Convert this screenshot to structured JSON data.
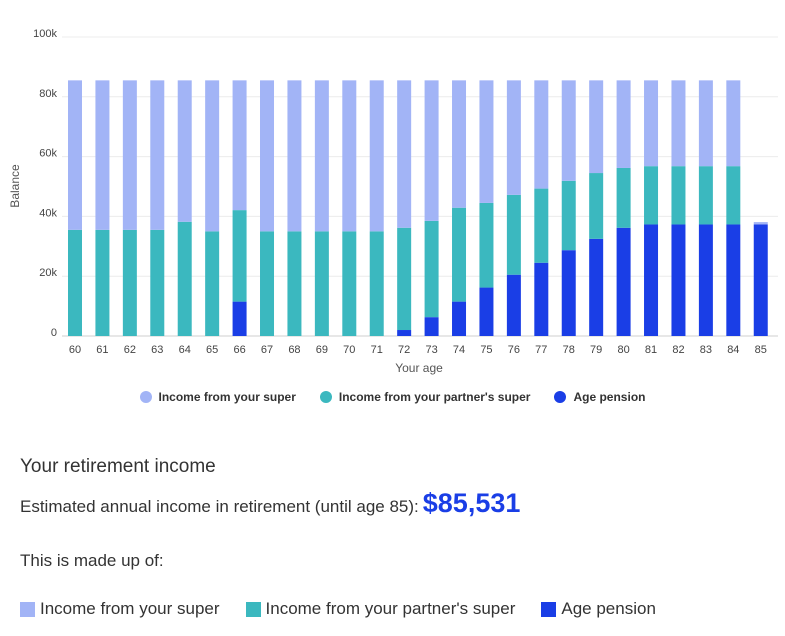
{
  "chart_data": {
    "type": "bar",
    "stacked": true,
    "xlabel": "Your age",
    "ylabel": "Balance",
    "ylim": [
      0,
      100000
    ],
    "y_ticks": [
      "0",
      "20k",
      "40k",
      "60k",
      "80k",
      "100k"
    ],
    "y_tick_values": [
      0,
      20000,
      40000,
      60000,
      80000,
      100000
    ],
    "grid": true,
    "legend_position": "bottom",
    "categories": [
      "60",
      "61",
      "62",
      "63",
      "64",
      "65",
      "66",
      "67",
      "68",
      "69",
      "70",
      "71",
      "72",
      "73",
      "74",
      "75",
      "76",
      "77",
      "78",
      "79",
      "80",
      "81",
      "82",
      "83",
      "84",
      "85"
    ],
    "series": [
      {
        "name": "Age pension",
        "color": "#1a3ee6",
        "values": [
          0,
          0,
          0,
          0,
          0,
          0,
          11500,
          0,
          0,
          0,
          0,
          0,
          2000,
          6300,
          11500,
          16200,
          20500,
          24500,
          28700,
          32500,
          36200,
          37300,
          37300,
          37300,
          37300,
          37300
        ]
      },
      {
        "name": "Income from your partner's super",
        "color": "#3bb8bf",
        "values": [
          35500,
          35500,
          35500,
          35500,
          38200,
          35000,
          30600,
          35000,
          35000,
          35000,
          35000,
          35000,
          34200,
          32200,
          31400,
          28300,
          26700,
          24800,
          23200,
          22000,
          20000,
          19500,
          19500,
          19500,
          19500,
          0
        ]
      },
      {
        "name": "Income from your super",
        "color": "#a2b4f6",
        "values": [
          50000,
          50000,
          50000,
          50000,
          47300,
          50500,
          43400,
          50500,
          50500,
          50500,
          50500,
          50500,
          49300,
          47000,
          42600,
          41000,
          38300,
          36200,
          33600,
          31000,
          29300,
          28700,
          28700,
          28700,
          28700,
          800
        ]
      }
    ]
  },
  "legend": {
    "items": [
      {
        "label": "Income from your super",
        "color": "#a2b4f6"
      },
      {
        "label": "Income from your partner's super",
        "color": "#3bb8bf"
      },
      {
        "label": "Age pension",
        "color": "#1a3ee6"
      }
    ]
  },
  "summary": {
    "title": "Your retirement income",
    "estimate_label": "Estimated annual income in retirement (until age 85):",
    "estimate_value": "$85,531",
    "made_up_of": "This is made up of:",
    "items": [
      {
        "label": "Income from your super",
        "color": "#a2b4f6"
      },
      {
        "label": "Income from your partner's super",
        "color": "#3bb8bf"
      },
      {
        "label": "Age pension",
        "color": "#1a3ee6"
      }
    ]
  }
}
